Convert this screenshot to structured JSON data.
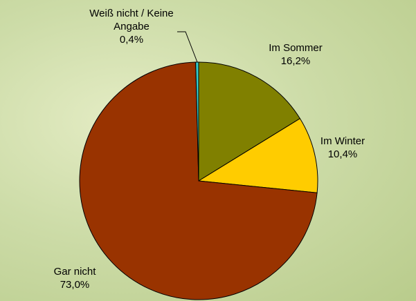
{
  "chart_data": {
    "type": "pie",
    "categories": [
      "Im Sommer",
      "Im Winter",
      "Gar nicht",
      "Weiß nicht / Keine Angabe"
    ],
    "values": [
      16.2,
      10.4,
      73.0,
      0.4
    ],
    "value_labels": [
      "16,2%",
      "10,4%",
      "73,0%",
      "0,4%"
    ],
    "colors": [
      "#808000",
      "#ffcc00",
      "#993300",
      "#33cccc"
    ]
  }
}
